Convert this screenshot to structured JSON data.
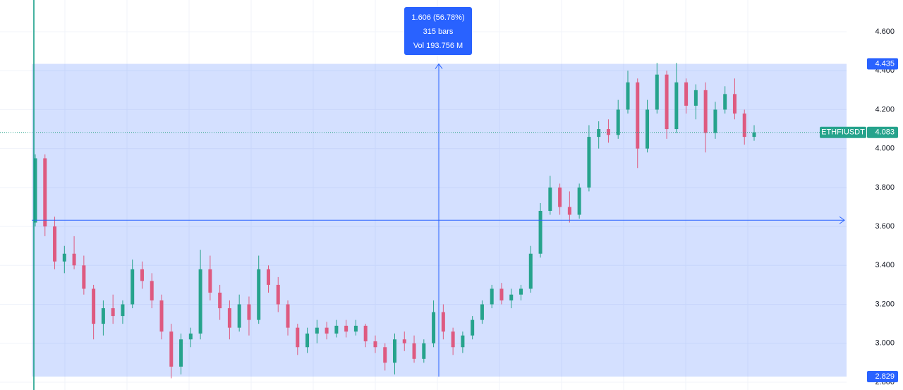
{
  "chart_data": {
    "type": "candlestick",
    "symbol": "ETHFIUSDT",
    "last_price": 4.083,
    "up_color": "#26a38c",
    "down_color": "#de5a80",
    "ylim": [
      2.76,
      4.763
    ],
    "yticks": [
      {
        "value": 2.8,
        "label": "2.800"
      },
      {
        "value": 3.0,
        "label": "3.000"
      },
      {
        "value": 3.2,
        "label": "3.200"
      },
      {
        "value": 3.4,
        "label": "3.400"
      },
      {
        "value": 3.6,
        "label": "3.600"
      },
      {
        "value": 3.8,
        "label": "3.800"
      },
      {
        "value": 4.0,
        "label": "4.000"
      },
      {
        "value": 4.2,
        "label": "4.200"
      },
      {
        "value": 4.4,
        "label": "4.400"
      },
      {
        "value": 4.6,
        "label": "4.600"
      }
    ],
    "grid": true,
    "measure": {
      "low": 2.829,
      "high": 4.435,
      "change": "1.606 (56.78%)",
      "bars": "315 bars",
      "volume": "Vol 193.756 M"
    },
    "candles": [
      [
        3.62,
        3.97,
        3.6,
        3.95
      ],
      [
        3.95,
        3.97,
        3.55,
        3.6
      ],
      [
        3.6,
        3.65,
        3.38,
        3.42
      ],
      [
        3.42,
        3.5,
        3.36,
        3.46
      ],
      [
        3.46,
        3.55,
        3.38,
        3.4
      ],
      [
        3.4,
        3.45,
        3.25,
        3.28
      ],
      [
        3.28,
        3.3,
        3.02,
        3.1
      ],
      [
        3.1,
        3.22,
        3.04,
        3.18
      ],
      [
        3.18,
        3.25,
        3.1,
        3.14
      ],
      [
        3.14,
        3.22,
        3.1,
        3.2
      ],
      [
        3.2,
        3.43,
        3.18,
        3.38
      ],
      [
        3.38,
        3.42,
        3.28,
        3.32
      ],
      [
        3.32,
        3.36,
        3.18,
        3.22
      ],
      [
        3.22,
        3.25,
        3.02,
        3.06
      ],
      [
        3.06,
        3.1,
        2.82,
        2.88
      ],
      [
        2.88,
        3.05,
        2.84,
        3.02
      ],
      [
        3.02,
        3.08,
        2.98,
        3.05
      ],
      [
        3.05,
        3.48,
        3.02,
        3.38
      ],
      [
        3.38,
        3.45,
        3.22,
        3.26
      ],
      [
        3.26,
        3.3,
        3.12,
        3.18
      ],
      [
        3.18,
        3.22,
        3.02,
        3.08
      ],
      [
        3.08,
        3.25,
        3.06,
        3.2
      ],
      [
        3.2,
        3.24,
        3.04,
        3.12
      ],
      [
        3.12,
        3.45,
        3.1,
        3.38
      ],
      [
        3.38,
        3.4,
        3.26,
        3.3
      ],
      [
        3.3,
        3.34,
        3.16,
        3.2
      ],
      [
        3.2,
        3.22,
        3.04,
        3.08
      ],
      [
        3.08,
        3.1,
        2.94,
        2.98
      ],
      [
        2.98,
        3.08,
        2.95,
        3.05
      ],
      [
        3.05,
        3.12,
        3.0,
        3.08
      ],
      [
        3.08,
        3.11,
        3.02,
        3.05
      ],
      [
        3.05,
        3.12,
        3.03,
        3.09
      ],
      [
        3.09,
        3.12,
        3.03,
        3.06
      ],
      [
        3.06,
        3.12,
        3.04,
        3.09
      ],
      [
        3.09,
        3.1,
        2.98,
        3.01
      ],
      [
        3.01,
        3.04,
        2.95,
        2.98
      ],
      [
        2.98,
        3.0,
        2.86,
        2.9
      ],
      [
        2.9,
        3.05,
        2.84,
        3.02
      ],
      [
        3.02,
        3.06,
        2.96,
        3.0
      ],
      [
        3.0,
        3.04,
        2.9,
        2.92
      ],
      [
        2.92,
        3.02,
        2.9,
        3.0
      ],
      [
        3.0,
        3.22,
        2.98,
        3.16
      ],
      [
        3.16,
        3.2,
        3.02,
        3.06
      ],
      [
        3.06,
        3.08,
        2.94,
        2.98
      ],
      [
        2.98,
        3.06,
        2.95,
        3.04
      ],
      [
        3.04,
        3.14,
        3.02,
        3.12
      ],
      [
        3.12,
        3.22,
        3.1,
        3.2
      ],
      [
        3.2,
        3.3,
        3.18,
        3.28
      ],
      [
        3.28,
        3.31,
        3.2,
        3.22
      ],
      [
        3.22,
        3.28,
        3.18,
        3.25
      ],
      [
        3.25,
        3.3,
        3.22,
        3.28
      ],
      [
        3.28,
        3.5,
        3.26,
        3.46
      ],
      [
        3.46,
        3.72,
        3.44,
        3.68
      ],
      [
        3.68,
        3.86,
        3.66,
        3.8
      ],
      [
        3.8,
        3.82,
        3.66,
        3.7
      ],
      [
        3.7,
        3.78,
        3.62,
        3.66
      ],
      [
        3.66,
        3.82,
        3.64,
        3.8
      ],
      [
        3.8,
        4.12,
        3.78,
        4.06
      ],
      [
        4.06,
        4.14,
        4.0,
        4.1
      ],
      [
        4.1,
        4.15,
        4.03,
        4.07
      ],
      [
        4.07,
        4.25,
        4.05,
        4.2
      ],
      [
        4.2,
        4.4,
        4.18,
        4.34
      ],
      [
        4.34,
        4.36,
        3.9,
        4.0
      ],
      [
        4.0,
        4.25,
        3.98,
        4.2
      ],
      [
        4.2,
        4.44,
        4.18,
        4.38
      ],
      [
        4.38,
        4.4,
        4.05,
        4.1
      ],
      [
        4.1,
        4.44,
        4.08,
        4.34
      ],
      [
        4.34,
        4.36,
        4.18,
        4.22
      ],
      [
        4.22,
        4.33,
        4.15,
        4.3
      ],
      [
        4.3,
        4.34,
        3.98,
        4.08
      ],
      [
        4.08,
        4.24,
        4.05,
        4.2
      ],
      [
        4.2,
        4.32,
        4.18,
        4.28
      ],
      [
        4.28,
        4.36,
        4.15,
        4.18
      ],
      [
        4.18,
        4.2,
        4.02,
        4.06
      ],
      [
        4.06,
        4.12,
        4.04,
        4.083
      ]
    ]
  }
}
